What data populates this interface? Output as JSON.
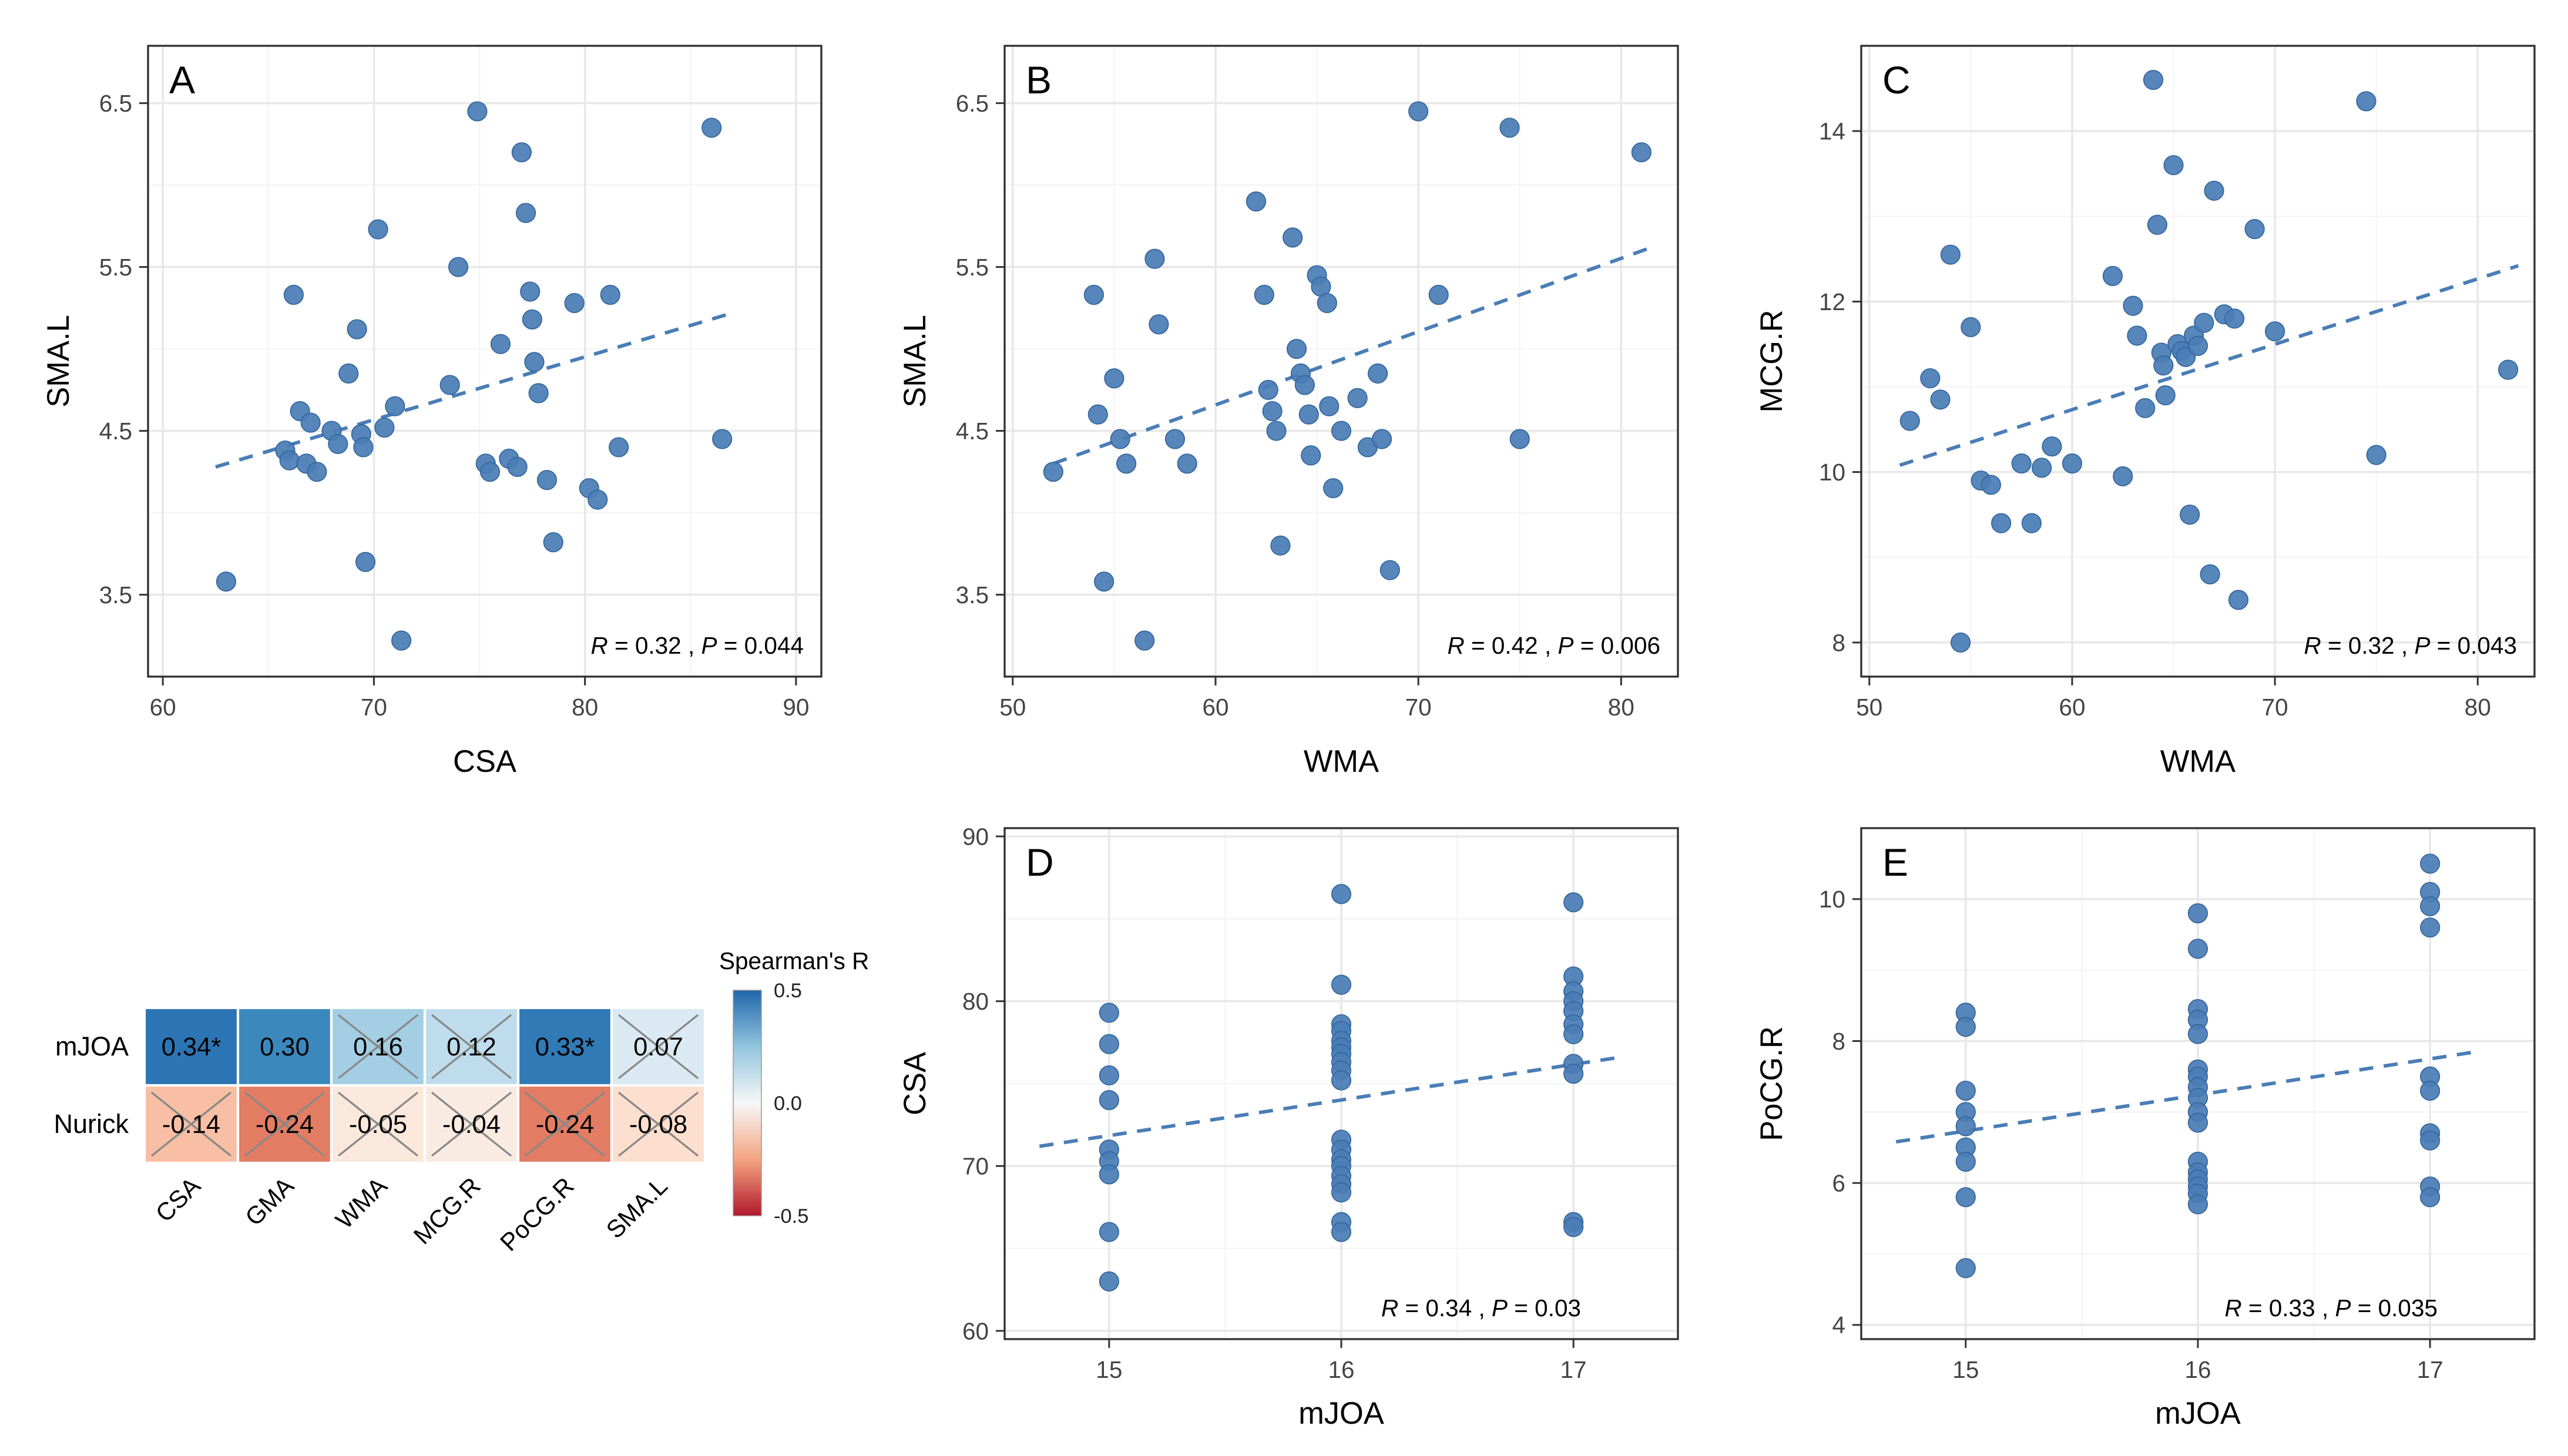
{
  "style": {
    "point_color": "#4a7db6",
    "point_edge_color": "#35679e",
    "trend_color": "#4a7db6",
    "grid_major": "#e8e8e8",
    "grid_minor": "#f5f5f5",
    "panel_border": "#2f2f2f",
    "tick_label_color": "#444444",
    "axis_title_color": "#000000",
    "background": "#ffffff"
  },
  "chart_data": [
    {
      "id": "A",
      "type": "scatter",
      "label": "A",
      "xlabel": "CSA",
      "ylabel": "SMA.L",
      "xlim": [
        59.3,
        91.2
      ],
      "xticks": [
        60,
        70,
        80,
        90
      ],
      "ylim": [
        3.0,
        6.85
      ],
      "yticks": [
        3.5,
        4.5,
        5.5,
        6.5
      ],
      "grid": true,
      "stat_offset": 10,
      "stats": {
        "R": "0.32",
        "P": "0.044"
      },
      "trend": [
        [
          62.5,
          4.28
        ],
        [
          87.0,
          5.22
        ]
      ],
      "points": [
        [
          63,
          3.58
        ],
        [
          65.8,
          4.38
        ],
        [
          66,
          4.32
        ],
        [
          66.2,
          5.33
        ],
        [
          66.5,
          4.62
        ],
        [
          66.8,
          4.3
        ],
        [
          67,
          4.55
        ],
        [
          67.3,
          4.25
        ],
        [
          68,
          4.5
        ],
        [
          68.3,
          4.42
        ],
        [
          68.8,
          4.85
        ],
        [
          69.2,
          5.12
        ],
        [
          69.4,
          4.48
        ],
        [
          69.5,
          4.4
        ],
        [
          69.6,
          3.7
        ],
        [
          70.2,
          5.73
        ],
        [
          70.5,
          4.52
        ],
        [
          71,
          4.65
        ],
        [
          71.3,
          3.22
        ],
        [
          73.6,
          4.78
        ],
        [
          74,
          5.5
        ],
        [
          74.9,
          6.45
        ],
        [
          75.3,
          4.3
        ],
        [
          75.5,
          4.25
        ],
        [
          76,
          5.03
        ],
        [
          76.4,
          4.33
        ],
        [
          76.8,
          4.28
        ],
        [
          77,
          6.2
        ],
        [
          77.2,
          5.83
        ],
        [
          77.4,
          5.35
        ],
        [
          77.5,
          5.18
        ],
        [
          77.6,
          4.92
        ],
        [
          77.8,
          4.73
        ],
        [
          78.2,
          4.2
        ],
        [
          78.5,
          3.82
        ],
        [
          79.5,
          5.28
        ],
        [
          80.2,
          4.15
        ],
        [
          80.6,
          4.08
        ],
        [
          81.2,
          5.33
        ],
        [
          81.6,
          4.4
        ],
        [
          86,
          6.35
        ],
        [
          86.5,
          4.45
        ]
      ]
    },
    {
      "id": "B",
      "type": "scatter",
      "label": "B",
      "xlabel": "WMA",
      "ylabel": "SMA.L",
      "xlim": [
        49.6,
        82.8
      ],
      "xticks": [
        50,
        60,
        70,
        80
      ],
      "ylim": [
        3.0,
        6.85
      ],
      "yticks": [
        3.5,
        4.5,
        5.5,
        6.5
      ],
      "grid": true,
      "stat_offset": 10,
      "stats": {
        "R": "0.42",
        "P": "0.006"
      },
      "trend": [
        [
          52.0,
          4.3
        ],
        [
          81.5,
          5.62
        ]
      ],
      "points": [
        [
          52,
          4.25
        ],
        [
          54,
          5.33
        ],
        [
          54.2,
          4.6
        ],
        [
          54.5,
          3.58
        ],
        [
          55,
          4.82
        ],
        [
          55.3,
          4.45
        ],
        [
          55.6,
          4.3
        ],
        [
          56.5,
          3.22
        ],
        [
          57,
          5.55
        ],
        [
          57.2,
          5.15
        ],
        [
          58,
          4.45
        ],
        [
          58.6,
          4.3
        ],
        [
          62,
          5.9
        ],
        [
          62.4,
          5.33
        ],
        [
          62.6,
          4.75
        ],
        [
          62.8,
          4.62
        ],
        [
          63,
          4.5
        ],
        [
          63.2,
          3.8
        ],
        [
          63.8,
          5.68
        ],
        [
          64,
          5.0
        ],
        [
          64.2,
          4.85
        ],
        [
          64.4,
          4.78
        ],
        [
          64.6,
          4.6
        ],
        [
          64.7,
          4.35
        ],
        [
          65,
          5.45
        ],
        [
          65.2,
          5.38
        ],
        [
          65.5,
          5.28
        ],
        [
          65.6,
          4.65
        ],
        [
          65.8,
          4.15
        ],
        [
          66.2,
          4.5
        ],
        [
          67,
          4.7
        ],
        [
          67.5,
          4.4
        ],
        [
          68,
          4.85
        ],
        [
          68.2,
          4.45
        ],
        [
          68.6,
          3.65
        ],
        [
          70,
          6.45
        ],
        [
          71,
          5.33
        ],
        [
          74.5,
          6.35
        ],
        [
          75,
          4.45
        ],
        [
          81,
          6.2
        ]
      ]
    },
    {
      "id": "C",
      "type": "scatter",
      "label": "C",
      "xlabel": "WMA",
      "ylabel": "MCG.R",
      "xlim": [
        49.6,
        82.8
      ],
      "xticks": [
        50,
        60,
        70,
        80
      ],
      "ylim": [
        7.6,
        15.0
      ],
      "yticks": [
        8,
        10,
        12,
        14
      ],
      "grid": true,
      "stat_offset": 10,
      "stats": {
        "R": "0.32",
        "P": "0.043"
      },
      "trend": [
        [
          51.5,
          10.08
        ],
        [
          82.0,
          12.42
        ]
      ],
      "points": [
        [
          52,
          10.6
        ],
        [
          53,
          11.1
        ],
        [
          53.5,
          10.85
        ],
        [
          54,
          12.55
        ],
        [
          54.5,
          8.0
        ],
        [
          55,
          11.7
        ],
        [
          55.5,
          9.9
        ],
        [
          56,
          9.85
        ],
        [
          56.5,
          9.4
        ],
        [
          57.5,
          10.1
        ],
        [
          58,
          9.4
        ],
        [
          58.5,
          10.05
        ],
        [
          59,
          10.3
        ],
        [
          60,
          10.1
        ],
        [
          62,
          12.3
        ],
        [
          62.5,
          9.95
        ],
        [
          63,
          11.95
        ],
        [
          63.2,
          11.6
        ],
        [
          63.6,
          10.75
        ],
        [
          64,
          14.6
        ],
        [
          64.2,
          12.9
        ],
        [
          64.4,
          11.4
        ],
        [
          64.5,
          11.25
        ],
        [
          64.6,
          10.9
        ],
        [
          65,
          13.6
        ],
        [
          65.2,
          11.5
        ],
        [
          65.4,
          11.42
        ],
        [
          65.6,
          11.35
        ],
        [
          65.8,
          9.5
        ],
        [
          66,
          11.6
        ],
        [
          66.2,
          11.48
        ],
        [
          66.5,
          11.75
        ],
        [
          66.8,
          8.8
        ],
        [
          67,
          13.3
        ],
        [
          67.5,
          11.85
        ],
        [
          68,
          11.8
        ],
        [
          68.2,
          8.5
        ],
        [
          69,
          12.85
        ],
        [
          70,
          11.65
        ],
        [
          74.5,
          14.35
        ],
        [
          75,
          10.2
        ],
        [
          81.5,
          11.2
        ]
      ]
    },
    {
      "id": "D",
      "type": "scatter",
      "label": "D",
      "xlabel": "mJOA",
      "ylabel": "CSA",
      "xlim": [
        14.55,
        17.45
      ],
      "xticks": [
        15,
        16,
        17
      ],
      "ylim": [
        59.5,
        90.5
      ],
      "yticks": [
        60,
        70,
        80,
        90
      ],
      "grid": true,
      "stat_offset": 55,
      "stats": {
        "R": "0.34",
        "P": "0.03"
      },
      "trend": [
        [
          14.7,
          71.2
        ],
        [
          17.2,
          76.6
        ]
      ],
      "points": [
        [
          15,
          79.3
        ],
        [
          15,
          77.4
        ],
        [
          15,
          75.5
        ],
        [
          15,
          74.0
        ],
        [
          15,
          71.0
        ],
        [
          15,
          70.3
        ],
        [
          15,
          69.5
        ],
        [
          15,
          66.0
        ],
        [
          15,
          63.0
        ],
        [
          16,
          86.5
        ],
        [
          16,
          81.0
        ],
        [
          16,
          78.6
        ],
        [
          16,
          78.2
        ],
        [
          16,
          77.6
        ],
        [
          16,
          77.2
        ],
        [
          16,
          76.8
        ],
        [
          16,
          76.3
        ],
        [
          16,
          75.8
        ],
        [
          16,
          75.2
        ],
        [
          16,
          71.6
        ],
        [
          16,
          71.0
        ],
        [
          16,
          70.4
        ],
        [
          16,
          70.0
        ],
        [
          16,
          69.4
        ],
        [
          16,
          68.9
        ],
        [
          16,
          68.4
        ],
        [
          16,
          66.6
        ],
        [
          16,
          66.0
        ],
        [
          17,
          86.0
        ],
        [
          17,
          81.5
        ],
        [
          17,
          80.6
        ],
        [
          17,
          80.0
        ],
        [
          17,
          79.4
        ],
        [
          17,
          78.6
        ],
        [
          17,
          78.0
        ],
        [
          17,
          76.2
        ],
        [
          17,
          75.6
        ],
        [
          17,
          66.6
        ],
        [
          17,
          66.3
        ]
      ]
    },
    {
      "id": "E",
      "type": "scatter",
      "label": "E",
      "xlabel": "mJOA",
      "ylabel": "PoCG.R",
      "xlim": [
        14.55,
        17.45
      ],
      "xticks": [
        15,
        16,
        17
      ],
      "ylim": [
        3.8,
        11.0
      ],
      "yticks": [
        4,
        6,
        8,
        10
      ],
      "grid": true,
      "stat_offset": 55,
      "stats": {
        "R": "0.33",
        "P": "0.035"
      },
      "trend": [
        [
          14.7,
          6.58
        ],
        [
          17.2,
          7.85
        ]
      ],
      "points": [
        [
          15,
          8.4
        ],
        [
          15,
          8.2
        ],
        [
          15,
          7.3
        ],
        [
          15,
          7.0
        ],
        [
          15,
          6.8
        ],
        [
          15,
          6.5
        ],
        [
          15,
          6.3
        ],
        [
          15,
          5.8
        ],
        [
          15,
          4.8
        ],
        [
          16,
          9.8
        ],
        [
          16,
          9.3
        ],
        [
          16,
          8.45
        ],
        [
          16,
          8.3
        ],
        [
          16,
          8.1
        ],
        [
          16,
          7.6
        ],
        [
          16,
          7.5
        ],
        [
          16,
          7.35
        ],
        [
          16,
          7.2
        ],
        [
          16,
          7.0
        ],
        [
          16,
          6.85
        ],
        [
          16,
          6.3
        ],
        [
          16,
          6.15
        ],
        [
          16,
          6.05
        ],
        [
          16,
          5.95
        ],
        [
          16,
          5.85
        ],
        [
          16,
          5.7
        ],
        [
          17,
          10.5
        ],
        [
          17,
          10.1
        ],
        [
          17,
          9.9
        ],
        [
          17,
          9.6
        ],
        [
          17,
          7.5
        ],
        [
          17,
          7.3
        ],
        [
          17,
          6.7
        ],
        [
          17,
          6.6
        ],
        [
          17,
          5.95
        ],
        [
          17,
          5.8
        ]
      ]
    },
    {
      "id": "corr",
      "type": "heatmap",
      "legend_title": "Spearman's R",
      "rows": [
        "mJOA",
        "Nurick"
      ],
      "cols": [
        "CSA",
        "GMA",
        "WMA",
        "MCG.R",
        "PoCG.R",
        "SMA.L"
      ],
      "values": [
        [
          0.34,
          0.3,
          0.16,
          0.12,
          0.33,
          0.07
        ],
        [
          -0.14,
          -0.24,
          -0.05,
          -0.04,
          -0.24,
          -0.08
        ]
      ],
      "labels": [
        [
          "0.34*",
          "0.30",
          "0.16",
          "0.12",
          "0.33*",
          "0.07"
        ],
        [
          "-0.14",
          "-0.24",
          "-0.05",
          "-0.04",
          "-0.24",
          "-0.08"
        ]
      ],
      "crossed": [
        [
          false,
          false,
          true,
          true,
          false,
          true
        ],
        [
          true,
          true,
          true,
          true,
          true,
          true
        ]
      ],
      "colorbar": {
        "ticks": [
          "0.5",
          "0.0",
          "-0.5"
        ],
        "max_color": "#2166ac",
        "mid_color": "#f7f7f7",
        "min_color": "#b2182b"
      }
    }
  ]
}
